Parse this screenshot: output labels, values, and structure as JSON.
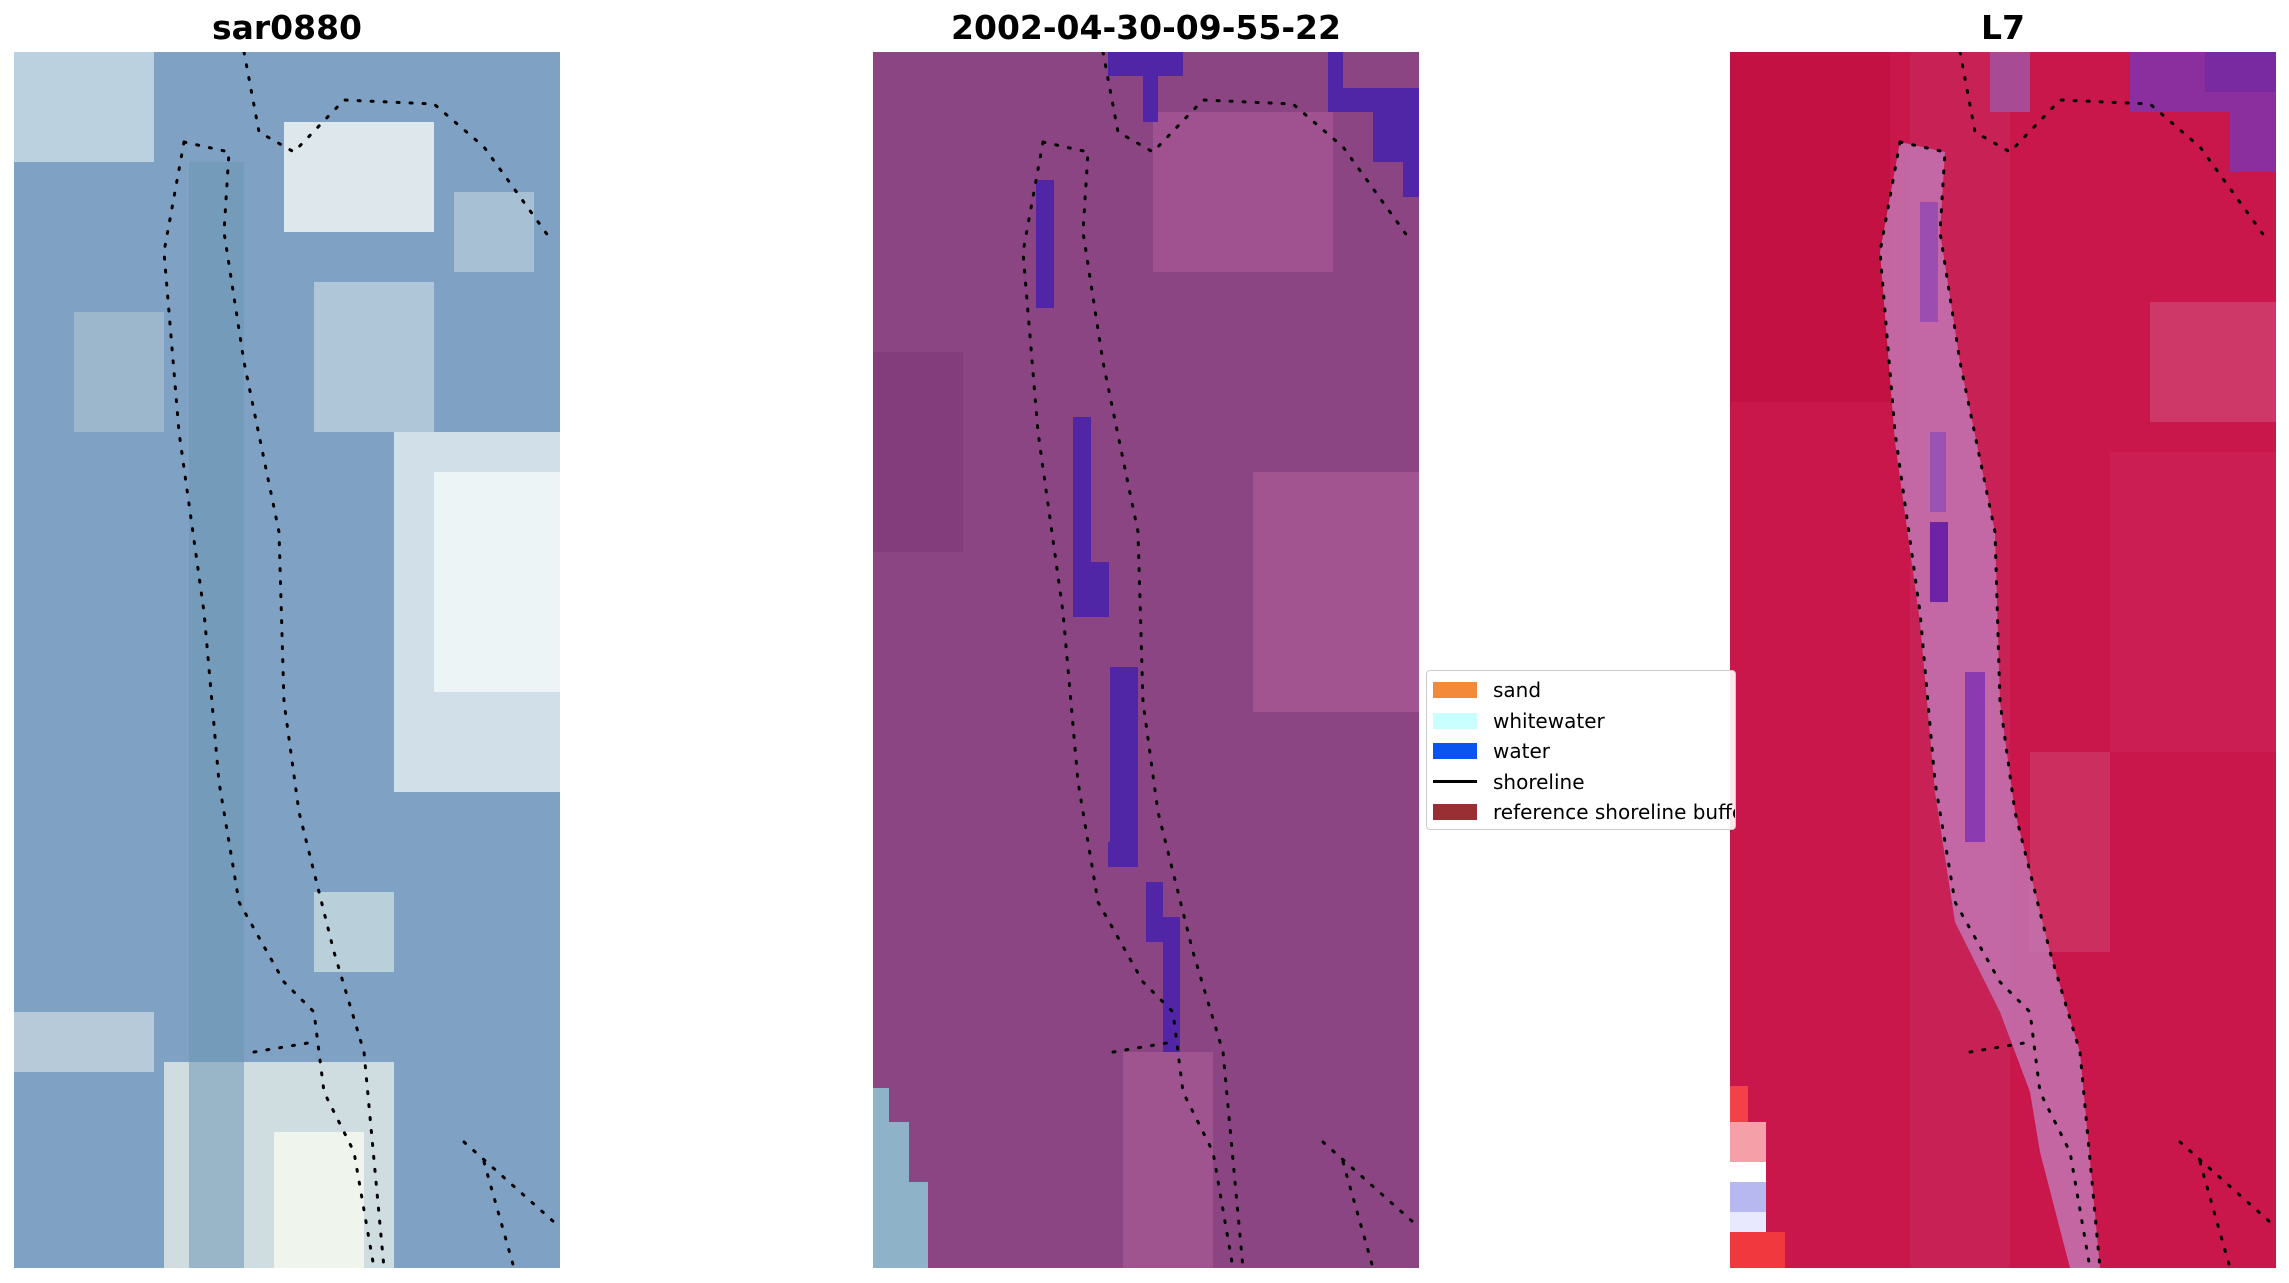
{
  "panels": [
    {
      "title": "sar0880",
      "kind": "rgb"
    },
    {
      "title": "2002-04-30-09-55-22",
      "kind": "classified"
    },
    {
      "title": "L7",
      "kind": "mndwi"
    }
  ],
  "legend": {
    "items": [
      {
        "label": "sand",
        "color": "#f28a3a",
        "kind": "patch"
      },
      {
        "label": "whitewater",
        "color": "#c9ffff",
        "kind": "patch"
      },
      {
        "label": "water",
        "color": "#0a55ef",
        "kind": "patch"
      },
      {
        "label": "shoreline",
        "color": "#000000",
        "kind": "line"
      },
      {
        "label": "reference shoreline buffer",
        "color": "#9a2f33",
        "kind": "patch"
      }
    ]
  },
  "colors": {
    "rgb_base": "#7fa2c4",
    "classified_base": "#8c4583",
    "classified_water": "#5126a6",
    "mndwi_base": "#c9174c",
    "dots": "#000000"
  }
}
